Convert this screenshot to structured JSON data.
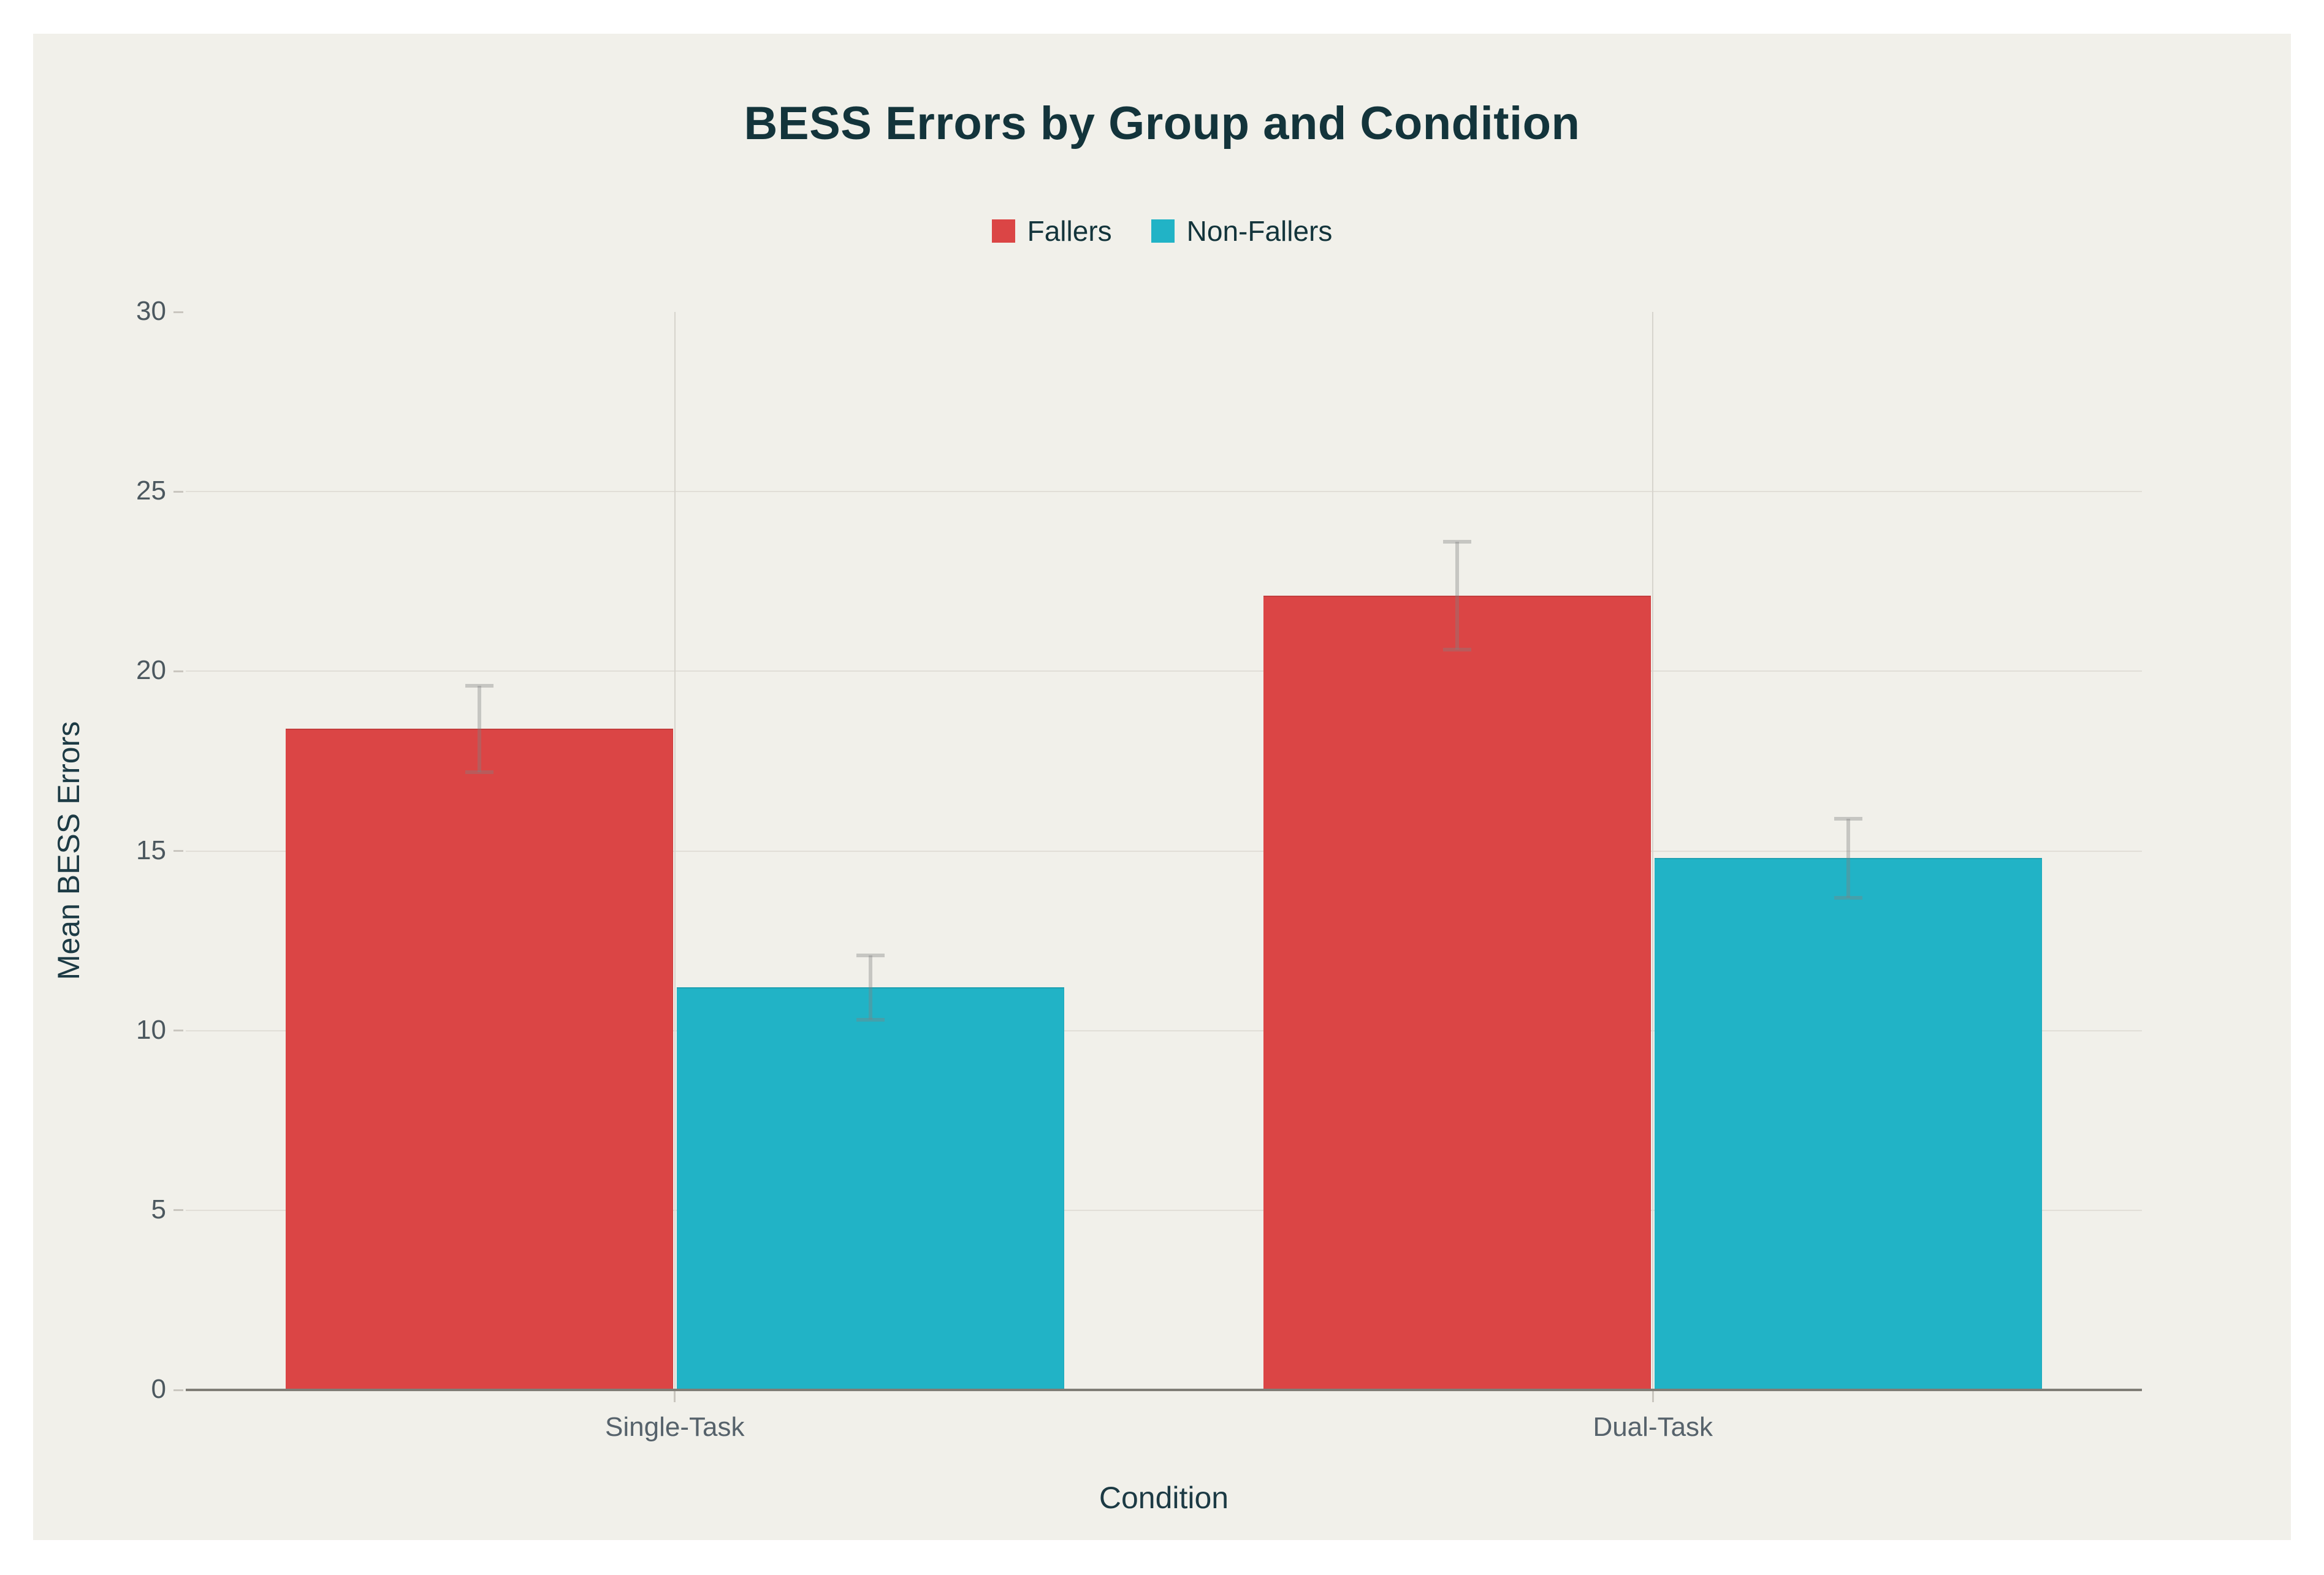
{
  "title": "BESS Errors by Group and Condition",
  "chart_data": {
    "type": "bar",
    "title": "BESS Errors by Group and Condition",
    "categories": [
      "Single-Task",
      "Dual-Task"
    ],
    "series": [
      {
        "name": "Fallers",
        "color": "#DB4545",
        "values": [
          18.4,
          22.1
        ],
        "error_bars": [
          1.2,
          1.5
        ]
      },
      {
        "name": "Non-Fallers",
        "color": "#21B3C6",
        "values": [
          11.2,
          14.8
        ],
        "error_bars": [
          0.9,
          1.1
        ]
      }
    ],
    "xlabel": "Condition",
    "ylabel": "Mean BESS Errors",
    "ylim": [
      0,
      30
    ],
    "yticks": [
      0,
      5,
      10,
      15,
      20,
      25,
      30
    ],
    "grid": true,
    "legend_position": "top-center",
    "error_bar_style": "mean ± error, gray whiskers with caps"
  },
  "colors": {
    "page_background": "#FFFFFF",
    "panel_background": "#F1F0EA",
    "title_text": "#13343B",
    "axis_title_text": "#1C3A44",
    "tick_label_text": "#4C585F",
    "category_label_text": "#56626B",
    "gridline_horizontal": "#E1DED7",
    "gridline_vertical": "#D7D4CD",
    "tick_mark": "#C9C6BF",
    "axis_line": "#7F7D76",
    "error_bar": "rgba(128,128,128,0.38)",
    "series_fallers": "#DB4545",
    "series_non_fallers": "#21B3C6"
  }
}
